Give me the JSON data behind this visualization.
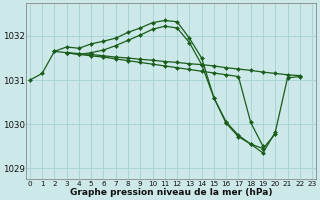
{
  "background_color": "#cce8e8",
  "grid_color": "#aad4d4",
  "line_color": "#1a5c1a",
  "xlabel": "Graphe pression niveau de la mer (hPa)",
  "ylim": [
    1028.75,
    1032.75
  ],
  "xlim": [
    -0.3,
    23.3
  ],
  "yticks": [
    1029,
    1030,
    1031,
    1032
  ],
  "xticks": [
    0,
    1,
    2,
    3,
    4,
    5,
    6,
    7,
    8,
    9,
    10,
    11,
    12,
    13,
    14,
    15,
    16,
    17,
    18,
    19,
    20,
    21,
    22,
    23
  ],
  "series": [
    {
      "x": [
        0,
        1,
        2,
        3,
        4,
        5,
        6,
        7,
        8,
        9,
        10,
        11,
        12,
        13,
        14,
        15,
        16,
        17,
        18,
        19,
        20,
        21,
        22
      ],
      "y": [
        1031.0,
        1031.15,
        1031.65,
        1031.75,
        1031.72,
        1031.82,
        1031.88,
        1031.95,
        1032.08,
        1032.18,
        1032.3,
        1032.35,
        1032.32,
        1031.95,
        1031.5,
        1030.6,
        1030.05,
        1029.75,
        1029.55,
        1029.35,
        1029.82,
        1031.05,
        1031.08
      ]
    },
    {
      "x": [
        2,
        3,
        4,
        5,
        6,
        7,
        8,
        9,
        10,
        11,
        12,
        13,
        14,
        15,
        16,
        17,
        18,
        19,
        20,
        21,
        22
      ],
      "y": [
        1031.65,
        1031.62,
        1031.6,
        1031.58,
        1031.55,
        1031.52,
        1031.5,
        1031.47,
        1031.45,
        1031.42,
        1031.4,
        1031.37,
        1031.35,
        1031.32,
        1031.28,
        1031.25,
        1031.22,
        1031.18,
        1031.15,
        1031.12,
        1031.1
      ]
    },
    {
      "x": [
        3,
        4,
        5,
        6,
        7,
        8,
        9,
        10,
        11,
        12,
        13,
        14,
        15,
        16,
        17,
        18,
        19,
        20
      ],
      "y": [
        1031.62,
        1031.58,
        1031.62,
        1031.68,
        1031.78,
        1031.9,
        1032.02,
        1032.15,
        1032.22,
        1032.18,
        1031.85,
        1031.35,
        1030.6,
        1030.02,
        1029.72,
        1029.55,
        1029.45,
        1029.78
      ]
    },
    {
      "x": [
        3,
        4,
        5,
        6,
        7,
        8,
        9,
        10,
        11,
        12,
        13,
        14,
        15,
        16,
        17,
        18,
        19
      ],
      "y": [
        1031.62,
        1031.58,
        1031.55,
        1031.52,
        1031.48,
        1031.44,
        1031.4,
        1031.36,
        1031.32,
        1031.28,
        1031.24,
        1031.2,
        1031.16,
        1031.12,
        1031.08,
        1030.04,
        1029.5
      ]
    }
  ]
}
